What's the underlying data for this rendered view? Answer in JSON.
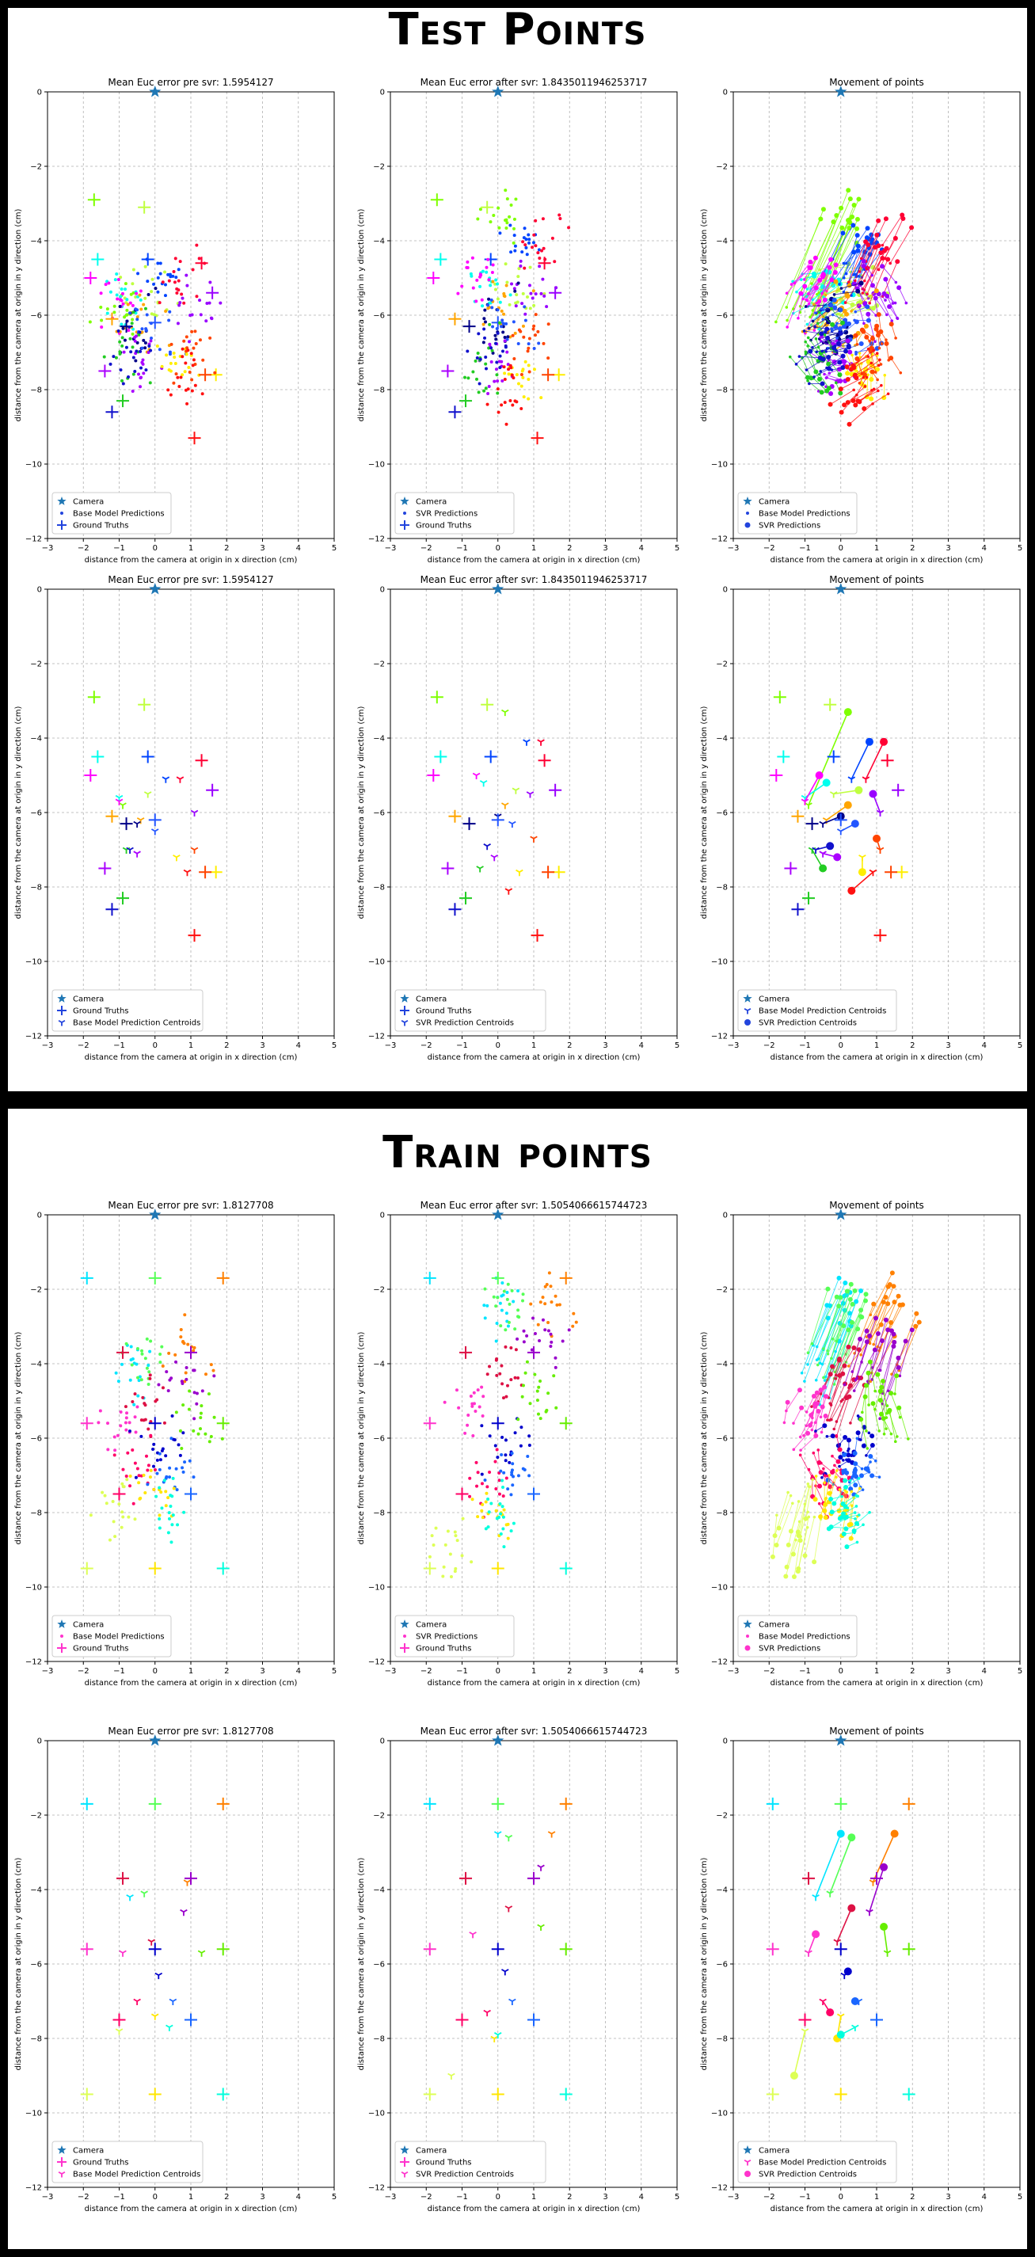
{
  "sections": [
    {
      "title": "Test Points",
      "rows": [
        {
          "row_type": "all_points",
          "plots": [
            {
              "title": "Mean Euc error pre svr: 1.5954127",
              "legend": [
                "Camera",
                "Base Model Predictions",
                "Ground Truths"
              ]
            },
            {
              "title": "Mean Euc error after svr: 1.8435011946253717",
              "legend": [
                "Camera",
                "SVR Predictions",
                "Ground Truths"
              ]
            },
            {
              "title": "Movement of points",
              "legend": [
                "Camera",
                "Base Model Predictions",
                "SVR Predictions"
              ]
            }
          ]
        },
        {
          "row_type": "centroids",
          "plots": [
            {
              "title": "Mean Euc error pre svr: 1.5954127",
              "legend": [
                "Camera",
                "Ground Truths",
                "Base Model Prediction Centroids"
              ]
            },
            {
              "title": "Mean Euc error after svr: 1.8435011946253717",
              "legend": [
                "Camera",
                "Ground Truths",
                "SVR Prediction Centroids"
              ]
            },
            {
              "title": "Movement of points",
              "legend": [
                "Camera",
                "Base Model Prediction Centroids",
                "SVR Prediction Centroids"
              ]
            }
          ]
        }
      ]
    },
    {
      "title": "Train points",
      "rows": [
        {
          "row_type": "all_points",
          "plots": [
            {
              "title": "Mean Euc error pre svr: 1.8127708",
              "legend": [
                "Camera",
                "Base Model Predictions",
                "Ground Truths"
              ]
            },
            {
              "title": "Mean Euc error after svr: 1.5054066615744723",
              "legend": [
                "Camera",
                "SVR Predictions",
                "Ground Truths"
              ]
            },
            {
              "title": "Movement of points",
              "legend": [
                "Camera",
                "Base Model Predictions",
                "SVR Predictions"
              ]
            }
          ]
        },
        {
          "row_type": "centroids",
          "plots": [
            {
              "title": "Mean Euc error pre svr: 1.8127708",
              "legend": [
                "Camera",
                "Ground Truths",
                "Base Model Prediction Centroids"
              ]
            },
            {
              "title": "Mean Euc error after svr: 1.5054066615744723",
              "legend": [
                "Camera",
                "Ground Truths",
                "SVR Prediction Centroids"
              ]
            },
            {
              "title": "Movement of points",
              "legend": [
                "Camera",
                "Base Model Prediction Centroids",
                "SVR Prediction Centroids"
              ]
            }
          ]
        }
      ]
    }
  ],
  "chart_data": [
    {
      "section": "Test Points",
      "type": "scatter",
      "xlabel": "distance from the camera at origin in x direction (cm)",
      "ylabel": "distance from the camera at origin in y direction (cm)",
      "xlim": [
        -3,
        5
      ],
      "ylim": [
        -12,
        0
      ],
      "xticks": [
        -3,
        -2,
        -1,
        0,
        1,
        2,
        3,
        4,
        5
      ],
      "yticks": [
        0,
        -2,
        -4,
        -6,
        -8,
        -10,
        -12
      ],
      "grid": true,
      "legend_position": "lower-left",
      "camera": {
        "x": 0,
        "y": 0,
        "color": "#1f77b4"
      },
      "groups": [
        {
          "color": "#7fff00",
          "truth": [
            -1.7,
            -2.9
          ],
          "base": [
            -0.9,
            -5.8
          ],
          "svr": [
            0.2,
            -3.3
          ]
        },
        {
          "color": "#c0ff40",
          "truth": [
            -0.3,
            -3.1
          ],
          "base": [
            -0.2,
            -5.5
          ],
          "svr": [
            0.5,
            -5.4
          ]
        },
        {
          "color": "#00ffee",
          "truth": [
            -1.6,
            -4.5
          ],
          "base": [
            -1.0,
            -5.6
          ],
          "svr": [
            -0.4,
            -5.2
          ]
        },
        {
          "color": "#0044ff",
          "truth": [
            -0.2,
            -4.5
          ],
          "base": [
            0.3,
            -5.1
          ],
          "svr": [
            0.8,
            -4.1
          ]
        },
        {
          "color": "#ff0033",
          "truth": [
            1.3,
            -4.6
          ],
          "base": [
            0.7,
            -5.1
          ],
          "svr": [
            1.2,
            -4.1
          ]
        },
        {
          "color": "#ff00ff",
          "truth": [
            -1.8,
            -5.0
          ],
          "base": [
            -1.0,
            -5.7
          ],
          "svr": [
            -0.6,
            -5.0
          ]
        },
        {
          "color": "#9900ff",
          "truth": [
            1.6,
            -5.4
          ],
          "base": [
            1.1,
            -6.0
          ],
          "svr": [
            0.9,
            -5.5
          ]
        },
        {
          "color": "#ffa500",
          "truth": [
            -1.2,
            -6.1
          ],
          "base": [
            -0.4,
            -6.2
          ],
          "svr": [
            0.2,
            -5.8
          ]
        },
        {
          "color": "#000088",
          "truth": [
            -0.8,
            -6.3
          ],
          "base": [
            -0.5,
            -6.3
          ],
          "svr": [
            0.0,
            -6.1
          ]
        },
        {
          "color": "#2255ff",
          "truth": [
            0.0,
            -6.2
          ],
          "base": [
            0.0,
            -6.5
          ],
          "svr": [
            0.4,
            -6.3
          ]
        },
        {
          "color": "#aa00ff",
          "truth": [
            -1.4,
            -7.5
          ],
          "base": [
            -0.5,
            -7.1
          ],
          "svr": [
            -0.1,
            -7.2
          ]
        },
        {
          "color": "#22cc22",
          "truth": [
            -0.9,
            -8.3
          ],
          "base": [
            -0.8,
            -7.0
          ],
          "svr": [
            -0.5,
            -7.5
          ]
        },
        {
          "color": "#ffee00",
          "truth": [
            1.7,
            -7.6
          ],
          "base": [
            0.6,
            -7.2
          ],
          "svr": [
            0.6,
            -7.6
          ]
        },
        {
          "color": "#ff4400",
          "truth": [
            1.4,
            -7.6
          ],
          "base": [
            1.1,
            -7.0
          ],
          "svr": [
            1.0,
            -6.7
          ]
        },
        {
          "color": "#1111cc",
          "truth": [
            -1.2,
            -8.6
          ],
          "base": [
            -0.7,
            -7.0
          ],
          "svr": [
            -0.3,
            -6.9
          ]
        },
        {
          "color": "#ff1111",
          "truth": [
            1.1,
            -9.3
          ],
          "base": [
            0.9,
            -7.6
          ],
          "svr": [
            0.3,
            -8.1
          ]
        }
      ]
    },
    {
      "section": "Train points",
      "type": "scatter",
      "xlabel": "distance from the camera at origin in x direction (cm)",
      "ylabel": "distance from the camera at origin in y direction (cm)",
      "xlim": [
        -3,
        5
      ],
      "ylim": [
        -12,
        0
      ],
      "xticks": [
        -3,
        -2,
        -1,
        0,
        1,
        2,
        3,
        4,
        5
      ],
      "yticks": [
        0,
        -2,
        -4,
        -6,
        -8,
        -10,
        -12
      ],
      "grid": true,
      "legend_position": "lower-left",
      "camera": {
        "x": 0,
        "y": 0,
        "color": "#1f77b4"
      },
      "groups": [
        {
          "color": "#00e5ff",
          "truth": [
            -1.9,
            -1.7
          ],
          "base": [
            -0.7,
            -4.2
          ],
          "svr": [
            0.0,
            -2.5
          ]
        },
        {
          "color": "#55ff55",
          "truth": [
            0.0,
            -1.7
          ],
          "base": [
            -0.3,
            -4.1
          ],
          "svr": [
            0.3,
            -2.6
          ]
        },
        {
          "color": "#ff8000",
          "truth": [
            1.9,
            -1.7
          ],
          "base": [
            0.9,
            -3.8
          ],
          "svr": [
            1.5,
            -2.5
          ]
        },
        {
          "color": "#dd1144",
          "truth": [
            -0.9,
            -3.7
          ],
          "base": [
            -0.1,
            -5.4
          ],
          "svr": [
            0.3,
            -4.5
          ]
        },
        {
          "color": "#9900cc",
          "truth": [
            1.0,
            -3.7
          ],
          "base": [
            0.8,
            -4.6
          ],
          "svr": [
            1.2,
            -3.4
          ]
        },
        {
          "color": "#ff33cc",
          "truth": [
            -1.9,
            -5.6
          ],
          "base": [
            -0.9,
            -5.7
          ],
          "svr": [
            -0.7,
            -5.2
          ]
        },
        {
          "color": "#0000cc",
          "truth": [
            0.0,
            -5.6
          ],
          "base": [
            0.1,
            -6.3
          ],
          "svr": [
            0.2,
            -6.2
          ]
        },
        {
          "color": "#66ee00",
          "truth": [
            1.9,
            -5.6
          ],
          "base": [
            1.3,
            -5.7
          ],
          "svr": [
            1.2,
            -5.0
          ]
        },
        {
          "color": "#ff0066",
          "truth": [
            -1.0,
            -7.5
          ],
          "base": [
            -0.5,
            -7.0
          ],
          "svr": [
            -0.3,
            -7.3
          ]
        },
        {
          "color": "#1a66ff",
          "truth": [
            1.0,
            -7.5
          ],
          "base": [
            0.5,
            -7.0
          ],
          "svr": [
            0.4,
            -7.0
          ]
        },
        {
          "color": "#ddff55",
          "truth": [
            -1.9,
            -9.5
          ],
          "base": [
            -1.0,
            -7.8
          ],
          "svr": [
            -1.3,
            -9.0
          ]
        },
        {
          "color": "#ffe600",
          "truth": [
            0.0,
            -9.5
          ],
          "base": [
            0.0,
            -7.4
          ],
          "svr": [
            -0.1,
            -8.0
          ]
        },
        {
          "color": "#00ffdd",
          "truth": [
            1.9,
            -9.5
          ],
          "base": [
            0.4,
            -7.7
          ],
          "svr": [
            0.0,
            -7.9
          ]
        }
      ]
    }
  ]
}
